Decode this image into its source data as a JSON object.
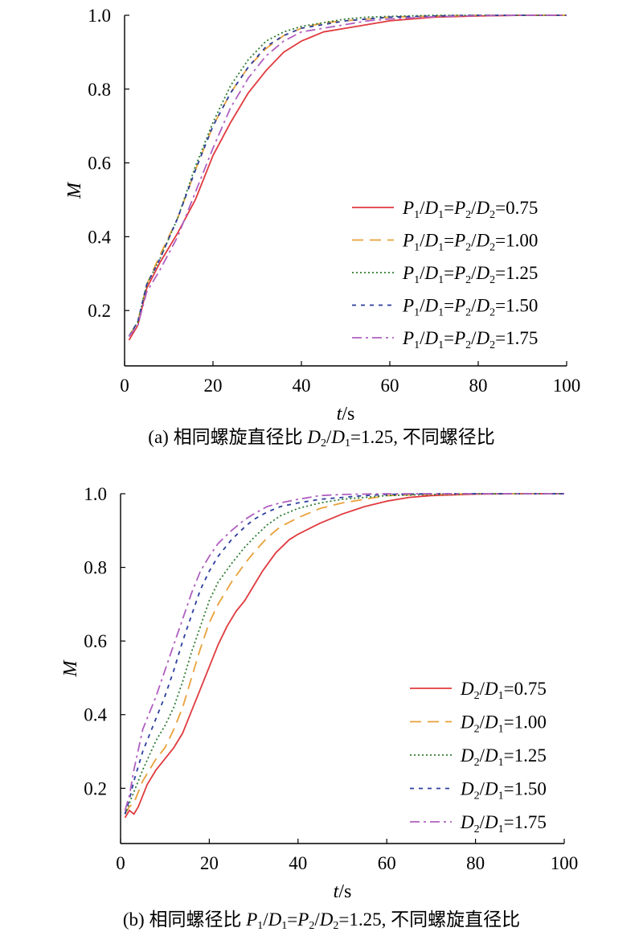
{
  "chart_data": [
    {
      "type": "line",
      "panel": "a",
      "caption": {
        "prefix": "(a) 相同螺旋直径比 ",
        "ratio": "=1.25",
        "suffix": ", 不同螺径比"
      },
      "xlabel": "t/s",
      "ylabel": "M",
      "xlim": [
        0,
        100
      ],
      "ylim": [
        0.05,
        1.0
      ],
      "xticks": [
        0,
        20,
        40,
        60,
        80,
        100
      ],
      "yticks": [
        0.2,
        0.4,
        0.6,
        0.8,
        1.0
      ],
      "legend": "lower-right",
      "series": [
        {
          "name": "P1/D1=P2/D2=0.75",
          "value_label": "=0.75",
          "color": "#e03a3e",
          "dash": "solid",
          "points": [
            [
              1,
              0.12
            ],
            [
              3,
              0.16
            ],
            [
              5,
              0.26
            ],
            [
              8,
              0.33
            ],
            [
              12,
              0.41
            ],
            [
              16,
              0.5
            ],
            [
              20,
              0.62
            ],
            [
              24,
              0.71
            ],
            [
              28,
              0.79
            ],
            [
              32,
              0.85
            ],
            [
              36,
              0.9
            ],
            [
              40,
              0.93
            ],
            [
              45,
              0.955
            ],
            [
              50,
              0.965
            ],
            [
              55,
              0.975
            ],
            [
              60,
              0.985
            ],
            [
              70,
              0.995
            ],
            [
              80,
              0.998
            ],
            [
              90,
              1.0
            ],
            [
              100,
              1.0
            ]
          ]
        },
        {
          "name": "P1/D1=P2/D2=1.00",
          "value_label": "=1.00",
          "color": "#e9a13b",
          "dash": "dash-long",
          "points": [
            [
              1,
              0.13
            ],
            [
              3,
              0.17
            ],
            [
              5,
              0.27
            ],
            [
              8,
              0.35
            ],
            [
              12,
              0.45
            ],
            [
              16,
              0.58
            ],
            [
              20,
              0.7
            ],
            [
              24,
              0.79
            ],
            [
              28,
              0.86
            ],
            [
              32,
              0.91
            ],
            [
              36,
              0.945
            ],
            [
              40,
              0.965
            ],
            [
              45,
              0.98
            ],
            [
              50,
              0.985
            ],
            [
              55,
              0.99
            ],
            [
              60,
              0.995
            ],
            [
              70,
              0.998
            ],
            [
              80,
              1.0
            ],
            [
              90,
              1.0
            ],
            [
              100,
              1.0
            ]
          ]
        },
        {
          "name": "P1/D1=P2/D2=1.25",
          "value_label": "=1.25",
          "color": "#2e7d32",
          "dash": "dot",
          "points": [
            [
              1,
              0.13
            ],
            [
              3,
              0.17
            ],
            [
              5,
              0.27
            ],
            [
              8,
              0.34
            ],
            [
              12,
              0.45
            ],
            [
              16,
              0.59
            ],
            [
              20,
              0.71
            ],
            [
              24,
              0.81
            ],
            [
              28,
              0.88
            ],
            [
              32,
              0.93
            ],
            [
              36,
              0.955
            ],
            [
              40,
              0.97
            ],
            [
              45,
              0.98
            ],
            [
              50,
              0.99
            ],
            [
              55,
              0.995
            ],
            [
              60,
              0.997
            ],
            [
              70,
              1.0
            ],
            [
              80,
              1.0
            ],
            [
              90,
              1.0
            ],
            [
              100,
              1.0
            ]
          ]
        },
        {
          "name": "P1/D1=P2/D2=1.50",
          "value_label": "=1.50",
          "color": "#2c3e9e",
          "dash": "dash-short",
          "points": [
            [
              1,
              0.13
            ],
            [
              3,
              0.17
            ],
            [
              5,
              0.27
            ],
            [
              8,
              0.34
            ],
            [
              12,
              0.45
            ],
            [
              16,
              0.58
            ],
            [
              20,
              0.7
            ],
            [
              24,
              0.79
            ],
            [
              28,
              0.86
            ],
            [
              32,
              0.915
            ],
            [
              36,
              0.945
            ],
            [
              40,
              0.965
            ],
            [
              45,
              0.975
            ],
            [
              50,
              0.985
            ],
            [
              55,
              0.99
            ],
            [
              60,
              0.995
            ],
            [
              70,
              0.998
            ],
            [
              80,
              1.0
            ],
            [
              90,
              1.0
            ],
            [
              100,
              1.0
            ]
          ]
        },
        {
          "name": "P1/D1=P2/D2=1.75",
          "value_label": "=1.75",
          "color": "#b060c0",
          "dash": "dash-dot",
          "points": [
            [
              1,
              0.13
            ],
            [
              3,
              0.16
            ],
            [
              5,
              0.25
            ],
            [
              8,
              0.31
            ],
            [
              12,
              0.4
            ],
            [
              16,
              0.52
            ],
            [
              20,
              0.64
            ],
            [
              24,
              0.75
            ],
            [
              28,
              0.83
            ],
            [
              32,
              0.89
            ],
            [
              36,
              0.93
            ],
            [
              40,
              0.955
            ],
            [
              45,
              0.965
            ],
            [
              50,
              0.975
            ],
            [
              55,
              0.985
            ],
            [
              60,
              0.99
            ],
            [
              70,
              0.996
            ],
            [
              80,
              0.999
            ],
            [
              90,
              1.0
            ],
            [
              100,
              1.0
            ]
          ]
        }
      ]
    },
    {
      "type": "line",
      "panel": "b",
      "caption": {
        "prefix": "(b) 相同螺径比 ",
        "ratio": "=1.25",
        "suffix": ", 不同螺旋直径比"
      },
      "xlabel": "t/s",
      "ylabel": "M",
      "xlim": [
        0,
        100
      ],
      "ylim": [
        0.05,
        1.0
      ],
      "xticks": [
        0,
        20,
        40,
        60,
        80,
        100
      ],
      "yticks": [
        0.2,
        0.4,
        0.6,
        0.8,
        1.0
      ],
      "legend": "lower-right",
      "series": [
        {
          "name": "D2/D1=0.75",
          "value_label": "=0.75",
          "color": "#e03a3e",
          "dash": "solid",
          "points": [
            [
              1,
              0.12
            ],
            [
              2,
              0.14
            ],
            [
              3,
              0.13
            ],
            [
              4,
              0.15
            ],
            [
              6,
              0.21
            ],
            [
              8,
              0.25
            ],
            [
              10,
              0.28
            ],
            [
              12,
              0.31
            ],
            [
              14,
              0.35
            ],
            [
              16,
              0.41
            ],
            [
              18,
              0.47
            ],
            [
              20,
              0.53
            ],
            [
              22,
              0.59
            ],
            [
              24,
              0.64
            ],
            [
              26,
              0.68
            ],
            [
              28,
              0.71
            ],
            [
              30,
              0.75
            ],
            [
              32,
              0.79
            ],
            [
              35,
              0.84
            ],
            [
              38,
              0.875
            ],
            [
              40,
              0.89
            ],
            [
              45,
              0.92
            ],
            [
              50,
              0.945
            ],
            [
              55,
              0.965
            ],
            [
              60,
              0.98
            ],
            [
              65,
              0.99
            ],
            [
              70,
              0.995
            ],
            [
              80,
              0.999
            ],
            [
              90,
              1.0
            ],
            [
              100,
              1.0
            ]
          ]
        },
        {
          "name": "D2/D1=1.00",
          "value_label": "=1.00",
          "color": "#e9a13b",
          "dash": "dash-long",
          "points": [
            [
              1,
              0.13
            ],
            [
              2,
              0.15
            ],
            [
              3,
              0.16
            ],
            [
              5,
              0.22
            ],
            [
              8,
              0.28
            ],
            [
              10,
              0.31
            ],
            [
              12,
              0.36
            ],
            [
              14,
              0.42
            ],
            [
              16,
              0.5
            ],
            [
              18,
              0.58
            ],
            [
              20,
              0.65
            ],
            [
              22,
              0.7
            ],
            [
              25,
              0.76
            ],
            [
              28,
              0.81
            ],
            [
              30,
              0.84
            ],
            [
              33,
              0.88
            ],
            [
              36,
              0.91
            ],
            [
              40,
              0.935
            ],
            [
              45,
              0.96
            ],
            [
              50,
              0.975
            ],
            [
              55,
              0.985
            ],
            [
              60,
              0.995
            ],
            [
              70,
              0.998
            ],
            [
              80,
              1.0
            ],
            [
              90,
              1.0
            ],
            [
              100,
              1.0
            ]
          ]
        },
        {
          "name": "D2/D1=1.25",
          "value_label": "=1.25",
          "color": "#2e7d32",
          "dash": "dot",
          "points": [
            [
              1,
              0.13
            ],
            [
              2,
              0.16
            ],
            [
              3,
              0.19
            ],
            [
              5,
              0.25
            ],
            [
              8,
              0.33
            ],
            [
              10,
              0.37
            ],
            [
              12,
              0.42
            ],
            [
              14,
              0.49
            ],
            [
              16,
              0.57
            ],
            [
              18,
              0.64
            ],
            [
              20,
              0.71
            ],
            [
              22,
              0.76
            ],
            [
              25,
              0.81
            ],
            [
              28,
              0.855
            ],
            [
              30,
              0.88
            ],
            [
              33,
              0.915
            ],
            [
              36,
              0.94
            ],
            [
              40,
              0.96
            ],
            [
              45,
              0.975
            ],
            [
              50,
              0.985
            ],
            [
              55,
              0.99
            ],
            [
              60,
              0.995
            ],
            [
              70,
              0.998
            ],
            [
              80,
              1.0
            ],
            [
              90,
              1.0
            ],
            [
              100,
              1.0
            ]
          ]
        },
        {
          "name": "D2/D1=1.50",
          "value_label": "=1.50",
          "color": "#2c3e9e",
          "dash": "dash-short",
          "points": [
            [
              1,
              0.13
            ],
            [
              2,
              0.17
            ],
            [
              3,
              0.22
            ],
            [
              5,
              0.3
            ],
            [
              8,
              0.39
            ],
            [
              10,
              0.45
            ],
            [
              12,
              0.52
            ],
            [
              14,
              0.6
            ],
            [
              16,
              0.67
            ],
            [
              18,
              0.74
            ],
            [
              20,
              0.79
            ],
            [
              22,
              0.83
            ],
            [
              25,
              0.875
            ],
            [
              28,
              0.91
            ],
            [
              30,
              0.93
            ],
            [
              33,
              0.95
            ],
            [
              36,
              0.965
            ],
            [
              40,
              0.975
            ],
            [
              45,
              0.985
            ],
            [
              50,
              0.99
            ],
            [
              55,
              0.995
            ],
            [
              60,
              0.998
            ],
            [
              70,
              1.0
            ],
            [
              80,
              1.0
            ],
            [
              90,
              1.0
            ],
            [
              100,
              1.0
            ]
          ]
        },
        {
          "name": "D2/D1=1.75",
          "value_label": "=1.75",
          "color": "#b060c0",
          "dash": "dash-dot",
          "points": [
            [
              1,
              0.14
            ],
            [
              2,
              0.18
            ],
            [
              3,
              0.25
            ],
            [
              5,
              0.36
            ],
            [
              8,
              0.45
            ],
            [
              10,
              0.52
            ],
            [
              12,
              0.59
            ],
            [
              14,
              0.66
            ],
            [
              16,
              0.73
            ],
            [
              18,
              0.79
            ],
            [
              20,
              0.83
            ],
            [
              22,
              0.865
            ],
            [
              25,
              0.9
            ],
            [
              28,
              0.93
            ],
            [
              30,
              0.945
            ],
            [
              33,
              0.965
            ],
            [
              36,
              0.975
            ],
            [
              40,
              0.985
            ],
            [
              45,
              0.995
            ],
            [
              50,
              0.998
            ],
            [
              60,
              1.0
            ],
            [
              70,
              1.0
            ],
            [
              80,
              1.0
            ],
            [
              90,
              1.0
            ],
            [
              100,
              1.0
            ]
          ]
        }
      ]
    }
  ]
}
